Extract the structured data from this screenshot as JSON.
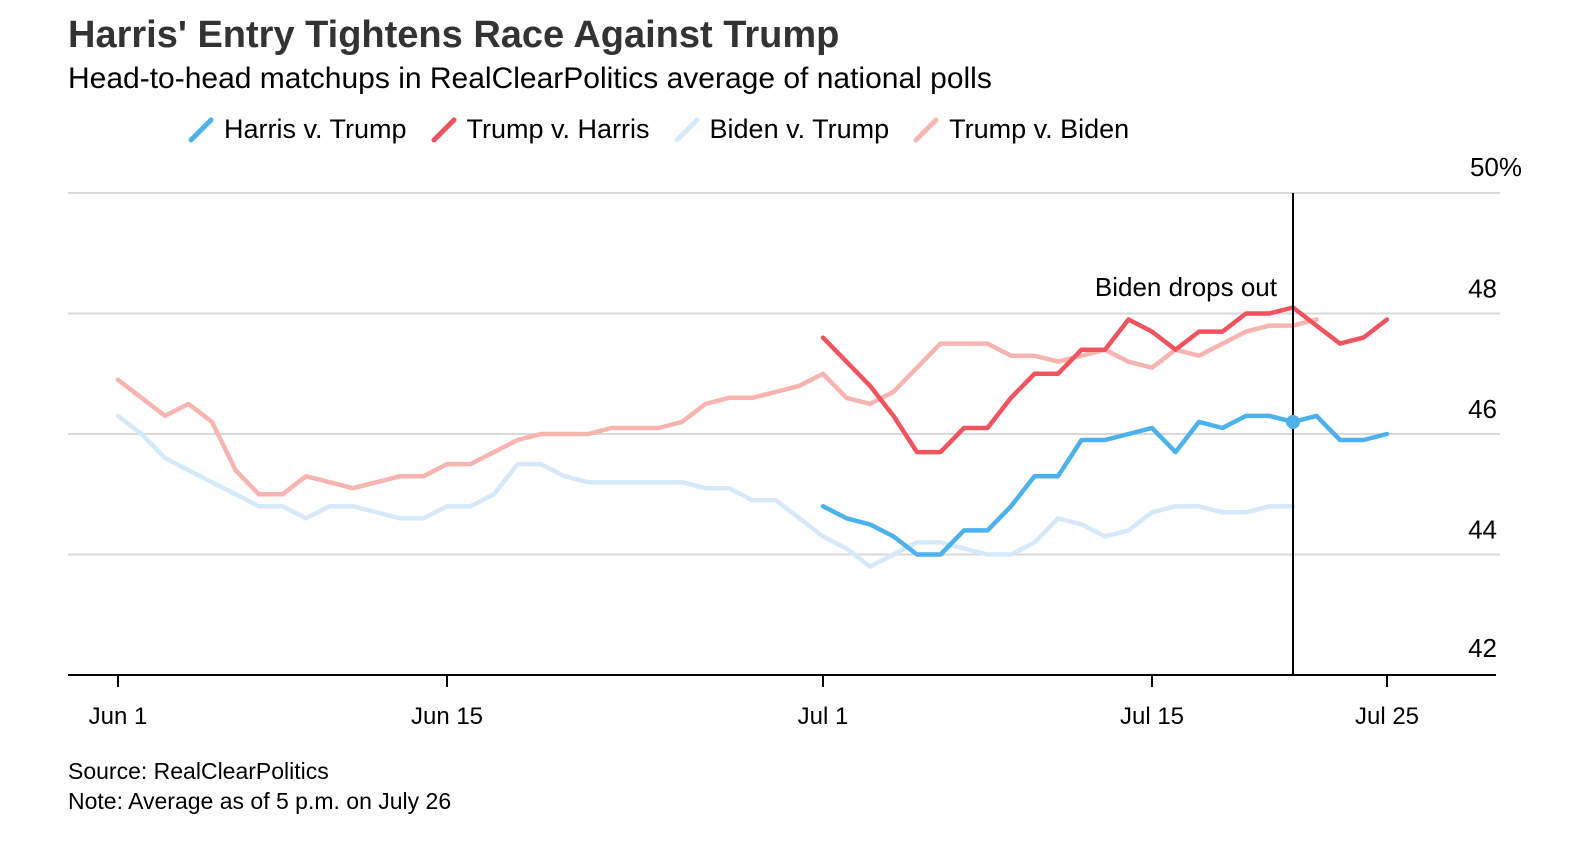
{
  "title": "Harris' Entry Tightens Race Against Trump",
  "subtitle": "Head-to-head matchups in RealClearPolitics average of national polls",
  "source": "Source: RealClearPolitics",
  "note": "Note: Average as of 5 p.m. on July 26",
  "chart_data": {
    "type": "line",
    "x_type": "date",
    "xlim": [
      "2024-05-30",
      "2024-07-30"
    ],
    "ylim": [
      42,
      50
    ],
    "y_ticks": [
      {
        "value": 42,
        "label": "42"
      },
      {
        "value": 44,
        "label": "44"
      },
      {
        "value": 46,
        "label": "46"
      },
      {
        "value": 48,
        "label": "48"
      },
      {
        "value": 50,
        "label": "50%"
      }
    ],
    "x_ticks": [
      {
        "date": "2024-06-01",
        "label": "Jun 1"
      },
      {
        "date": "2024-06-15",
        "label": "Jun 15"
      },
      {
        "date": "2024-07-01",
        "label": "Jul 1"
      },
      {
        "date": "2024-07-15",
        "label": "Jul 15"
      },
      {
        "date": "2024-07-25",
        "label": "Jul 25"
      }
    ],
    "grid": true,
    "legend_position": "top",
    "annotation": {
      "date": "2024-07-21",
      "label": "Biden drops out"
    },
    "series": [
      {
        "name": "Biden v. Trump",
        "color": "#d6e9fb",
        "points": [
          [
            "2024-06-01",
            46.3
          ],
          [
            "2024-06-02",
            46.0
          ],
          [
            "2024-06-03",
            45.6
          ],
          [
            "2024-06-04",
            45.4
          ],
          [
            "2024-06-05",
            45.2
          ],
          [
            "2024-06-06",
            45.0
          ],
          [
            "2024-06-07",
            44.8
          ],
          [
            "2024-06-08",
            44.8
          ],
          [
            "2024-06-09",
            44.6
          ],
          [
            "2024-06-10",
            44.8
          ],
          [
            "2024-06-11",
            44.8
          ],
          [
            "2024-06-12",
            44.7
          ],
          [
            "2024-06-13",
            44.6
          ],
          [
            "2024-06-14",
            44.6
          ],
          [
            "2024-06-15",
            44.8
          ],
          [
            "2024-06-16",
            44.8
          ],
          [
            "2024-06-17",
            45.0
          ],
          [
            "2024-06-18",
            45.5
          ],
          [
            "2024-06-19",
            45.5
          ],
          [
            "2024-06-20",
            45.3
          ],
          [
            "2024-06-21",
            45.2
          ],
          [
            "2024-06-22",
            45.2
          ],
          [
            "2024-06-23",
            45.2
          ],
          [
            "2024-06-24",
            45.2
          ],
          [
            "2024-06-25",
            45.2
          ],
          [
            "2024-06-26",
            45.1
          ],
          [
            "2024-06-27",
            45.1
          ],
          [
            "2024-06-28",
            44.9
          ],
          [
            "2024-06-29",
            44.9
          ],
          [
            "2024-06-30",
            44.6
          ],
          [
            "2024-07-01",
            44.3
          ],
          [
            "2024-07-02",
            44.1
          ],
          [
            "2024-07-03",
            43.8
          ],
          [
            "2024-07-04",
            44.0
          ],
          [
            "2024-07-05",
            44.2
          ],
          [
            "2024-07-06",
            44.2
          ],
          [
            "2024-07-07",
            44.1
          ],
          [
            "2024-07-08",
            44.0
          ],
          [
            "2024-07-09",
            44.0
          ],
          [
            "2024-07-10",
            44.2
          ],
          [
            "2024-07-11",
            44.6
          ],
          [
            "2024-07-12",
            44.5
          ],
          [
            "2024-07-13",
            44.3
          ],
          [
            "2024-07-14",
            44.4
          ],
          [
            "2024-07-15",
            44.7
          ],
          [
            "2024-07-16",
            44.8
          ],
          [
            "2024-07-17",
            44.8
          ],
          [
            "2024-07-18",
            44.7
          ],
          [
            "2024-07-19",
            44.7
          ],
          [
            "2024-07-20",
            44.8
          ],
          [
            "2024-07-21",
            44.8
          ]
        ]
      },
      {
        "name": "Trump v. Biden",
        "color": "#f8b4b0",
        "points": [
          [
            "2024-06-01",
            46.9
          ],
          [
            "2024-06-02",
            46.6
          ],
          [
            "2024-06-03",
            46.3
          ],
          [
            "2024-06-04",
            46.5
          ],
          [
            "2024-06-05",
            46.2
          ],
          [
            "2024-06-06",
            45.4
          ],
          [
            "2024-06-07",
            45.0
          ],
          [
            "2024-06-08",
            45.0
          ],
          [
            "2024-06-09",
            45.3
          ],
          [
            "2024-06-10",
            45.2
          ],
          [
            "2024-06-11",
            45.1
          ],
          [
            "2024-06-12",
            45.2
          ],
          [
            "2024-06-13",
            45.3
          ],
          [
            "2024-06-14",
            45.3
          ],
          [
            "2024-06-15",
            45.5
          ],
          [
            "2024-06-16",
            45.5
          ],
          [
            "2024-06-17",
            45.7
          ],
          [
            "2024-06-18",
            45.9
          ],
          [
            "2024-06-19",
            46.0
          ],
          [
            "2024-06-20",
            46.0
          ],
          [
            "2024-06-21",
            46.0
          ],
          [
            "2024-06-22",
            46.1
          ],
          [
            "2024-06-23",
            46.1
          ],
          [
            "2024-06-24",
            46.1
          ],
          [
            "2024-06-25",
            46.2
          ],
          [
            "2024-06-26",
            46.5
          ],
          [
            "2024-06-27",
            46.6
          ],
          [
            "2024-06-28",
            46.6
          ],
          [
            "2024-06-29",
            46.7
          ],
          [
            "2024-06-30",
            46.8
          ],
          [
            "2024-07-01",
            47.0
          ],
          [
            "2024-07-02",
            46.6
          ],
          [
            "2024-07-03",
            46.5
          ],
          [
            "2024-07-04",
            46.7
          ],
          [
            "2024-07-05",
            47.1
          ],
          [
            "2024-07-06",
            47.5
          ],
          [
            "2024-07-07",
            47.5
          ],
          [
            "2024-07-08",
            47.5
          ],
          [
            "2024-07-09",
            47.3
          ],
          [
            "2024-07-10",
            47.3
          ],
          [
            "2024-07-11",
            47.2
          ],
          [
            "2024-07-12",
            47.3
          ],
          [
            "2024-07-13",
            47.4
          ],
          [
            "2024-07-14",
            47.2
          ],
          [
            "2024-07-15",
            47.1
          ],
          [
            "2024-07-16",
            47.4
          ],
          [
            "2024-07-17",
            47.3
          ],
          [
            "2024-07-18",
            47.5
          ],
          [
            "2024-07-19",
            47.7
          ],
          [
            "2024-07-20",
            47.8
          ],
          [
            "2024-07-21",
            47.8
          ],
          [
            "2024-07-22",
            47.9
          ]
        ]
      },
      {
        "name": "Harris v. Trump",
        "color": "#4db2ec",
        "points": [
          [
            "2024-07-01",
            44.8
          ],
          [
            "2024-07-02",
            44.6
          ],
          [
            "2024-07-03",
            44.5
          ],
          [
            "2024-07-04",
            44.3
          ],
          [
            "2024-07-05",
            44.0
          ],
          [
            "2024-07-06",
            44.0
          ],
          [
            "2024-07-07",
            44.4
          ],
          [
            "2024-07-08",
            44.4
          ],
          [
            "2024-07-09",
            44.8
          ],
          [
            "2024-07-10",
            45.3
          ],
          [
            "2024-07-11",
            45.3
          ],
          [
            "2024-07-12",
            45.9
          ],
          [
            "2024-07-13",
            45.9
          ],
          [
            "2024-07-14",
            46.0
          ],
          [
            "2024-07-15",
            46.1
          ],
          [
            "2024-07-16",
            45.7
          ],
          [
            "2024-07-17",
            46.2
          ],
          [
            "2024-07-18",
            46.1
          ],
          [
            "2024-07-19",
            46.3
          ],
          [
            "2024-07-20",
            46.3
          ],
          [
            "2024-07-21",
            46.2
          ],
          [
            "2024-07-22",
            46.3
          ],
          [
            "2024-07-23",
            45.9
          ],
          [
            "2024-07-24",
            45.9
          ],
          [
            "2024-07-25",
            46.0
          ]
        ]
      },
      {
        "name": "Trump v. Harris",
        "color": "#f0545f",
        "points": [
          [
            "2024-07-01",
            47.6
          ],
          [
            "2024-07-02",
            47.2
          ],
          [
            "2024-07-03",
            46.8
          ],
          [
            "2024-07-04",
            46.3
          ],
          [
            "2024-07-05",
            45.7
          ],
          [
            "2024-07-06",
            45.7
          ],
          [
            "2024-07-07",
            46.1
          ],
          [
            "2024-07-08",
            46.1
          ],
          [
            "2024-07-09",
            46.6
          ],
          [
            "2024-07-10",
            47.0
          ],
          [
            "2024-07-11",
            47.0
          ],
          [
            "2024-07-12",
            47.4
          ],
          [
            "2024-07-13",
            47.4
          ],
          [
            "2024-07-14",
            47.9
          ],
          [
            "2024-07-15",
            47.7
          ],
          [
            "2024-07-16",
            47.4
          ],
          [
            "2024-07-17",
            47.7
          ],
          [
            "2024-07-18",
            47.7
          ],
          [
            "2024-07-19",
            48.0
          ],
          [
            "2024-07-20",
            48.0
          ],
          [
            "2024-07-21",
            48.1
          ],
          [
            "2024-07-22",
            47.8
          ],
          [
            "2024-07-23",
            47.5
          ],
          [
            "2024-07-24",
            47.6
          ],
          [
            "2024-07-25",
            47.9
          ]
        ]
      }
    ],
    "legend_order": [
      "Harris v. Trump",
      "Trump v. Harris",
      "Biden v. Trump",
      "Trump v. Biden"
    ]
  }
}
